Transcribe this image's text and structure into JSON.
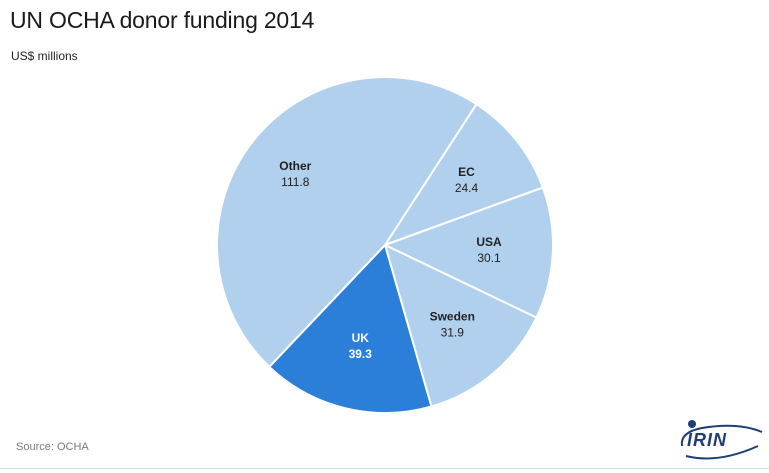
{
  "title": "UN OCHA donor funding 2014",
  "subtitle": "US$ millions",
  "source": "Source: OCHA",
  "logo": {
    "text": "IRIN",
    "color": "#1f3d7a"
  },
  "colors": {
    "slice": "#b0d0ee",
    "highlight": "#2b7fd9",
    "stroke": "#ffffff"
  },
  "chart_data": {
    "type": "pie",
    "unit": "US$ millions",
    "slices": [
      {
        "label": "EC",
        "value": 24.4,
        "display": "24.4",
        "highlight": false
      },
      {
        "label": "USA",
        "value": 30.1,
        "display": "30.1",
        "highlight": false
      },
      {
        "label": "Sweden",
        "value": 31.9,
        "display": "31.9",
        "highlight": false
      },
      {
        "label": "UK",
        "value": 39.3,
        "display": "39.3",
        "highlight": true
      },
      {
        "label": "Other",
        "value": 111.8,
        "display": "111.8",
        "highlight": false
      }
    ],
    "legend": "none"
  }
}
